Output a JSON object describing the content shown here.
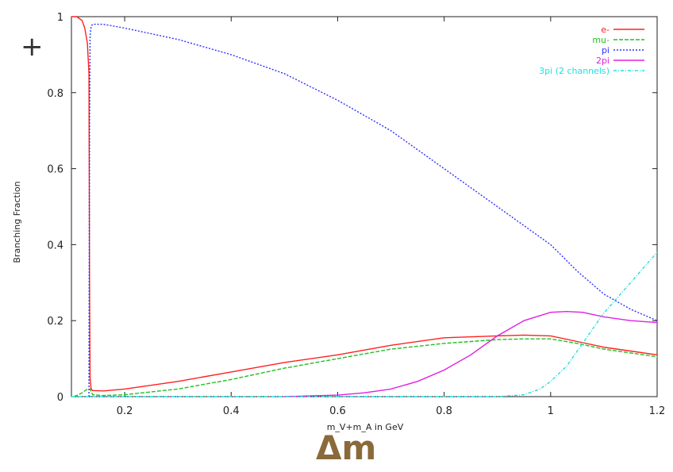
{
  "chart_data": {
    "type": "line",
    "title": "",
    "xlabel": "m_V+m_A in GeV",
    "ylabel": "Branching Fraction",
    "xlim": [
      0.1,
      1.2
    ],
    "ylim": [
      0,
      1
    ],
    "xticks": [
      0.2,
      0.4,
      0.6,
      0.8,
      1,
      1.2
    ],
    "yticks": [
      0,
      0.2,
      0.4,
      0.6,
      0.8,
      1
    ],
    "grid": false,
    "legend_position": "top-right",
    "series": [
      {
        "name": "e-",
        "color": "#ff2020",
        "dash": "",
        "x": [
          0.1,
          0.11,
          0.12,
          0.125,
          0.13,
          0.133,
          0.134,
          0.135,
          0.137,
          0.14,
          0.16,
          0.2,
          0.3,
          0.4,
          0.5,
          0.6,
          0.7,
          0.8,
          0.9,
          0.95,
          1.0,
          1.05,
          1.1,
          1.15,
          1.2
        ],
        "y": [
          1.0,
          1.0,
          0.99,
          0.97,
          0.93,
          0.85,
          0.3,
          0.05,
          0.02,
          0.016,
          0.015,
          0.02,
          0.04,
          0.065,
          0.09,
          0.11,
          0.135,
          0.155,
          0.16,
          0.162,
          0.16,
          0.145,
          0.13,
          0.12,
          0.11
        ]
      },
      {
        "name": "mu-",
        "color": "#20c020",
        "dash": "5,2",
        "x": [
          0.105,
          0.12,
          0.13,
          0.135,
          0.14,
          0.16,
          0.2,
          0.3,
          0.4,
          0.5,
          0.6,
          0.7,
          0.8,
          0.9,
          0.95,
          1.0,
          1.05,
          1.1,
          1.15,
          1.2
        ],
        "y": [
          0,
          0.01,
          0.02,
          0.02,
          0.005,
          0.003,
          0.005,
          0.02,
          0.045,
          0.075,
          0.1,
          0.125,
          0.14,
          0.15,
          0.152,
          0.152,
          0.14,
          0.125,
          0.115,
          0.105
        ]
      },
      {
        "name": "pi",
        "color": "#3030ff",
        "dash": "2,2",
        "x": [
          0.133,
          0.134,
          0.135,
          0.137,
          0.14,
          0.16,
          0.2,
          0.3,
          0.4,
          0.5,
          0.6,
          0.7,
          0.8,
          0.9,
          1.0,
          1.05,
          1.1,
          1.15,
          1.2
        ],
        "y": [
          0,
          0.7,
          0.95,
          0.975,
          0.98,
          0.98,
          0.97,
          0.94,
          0.9,
          0.85,
          0.78,
          0.7,
          0.6,
          0.5,
          0.4,
          0.33,
          0.27,
          0.23,
          0.2
        ]
      },
      {
        "name": "2pi",
        "color": "#e020e0",
        "dash": "",
        "x": [
          0.5,
          0.6,
          0.65,
          0.7,
          0.75,
          0.8,
          0.85,
          0.9,
          0.95,
          1.0,
          1.03,
          1.06,
          1.1,
          1.15,
          1.2
        ],
        "y": [
          0.0,
          0.004,
          0.01,
          0.02,
          0.04,
          0.07,
          0.11,
          0.16,
          0.2,
          0.222,
          0.224,
          0.222,
          0.21,
          0.2,
          0.195
        ]
      },
      {
        "name": "3pi (2 channels)",
        "color": "#20e0e0",
        "dash": "4,2,1,2",
        "x": [
          0.1,
          0.9,
          0.95,
          0.98,
          1.0,
          1.03,
          1.06,
          1.1,
          1.15,
          1.2
        ],
        "y": [
          0.0,
          0.0,
          0.005,
          0.02,
          0.04,
          0.08,
          0.14,
          0.22,
          0.3,
          0.38
        ]
      }
    ],
    "annotation": "Δm",
    "corner_mark": "+"
  }
}
